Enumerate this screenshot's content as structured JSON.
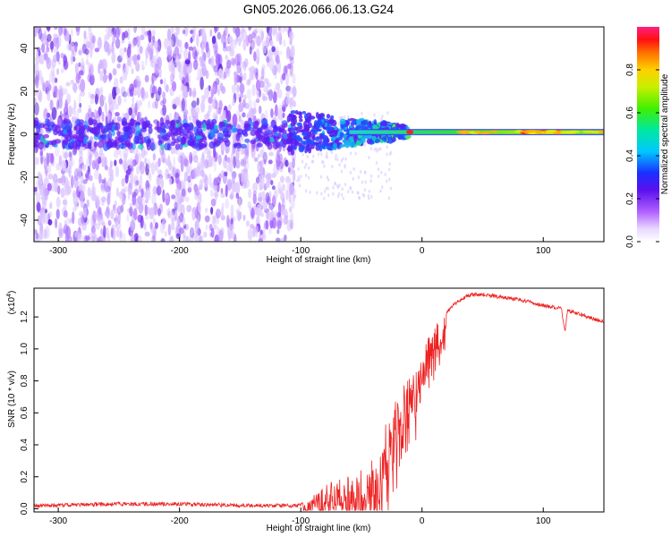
{
  "title": "GN05.2026.066.06.13.G24",
  "colors": {
    "snr_line": "#ee2222",
    "axis": "#000000",
    "spectrum_violet": "#7a35ee",
    "spectrum_band": "#22cc66"
  },
  "chart_data": [
    {
      "type": "heatmap",
      "name": "spectrogram",
      "xlabel": "Height of straight line (km)",
      "ylabel": "Frequency (Hz)",
      "xlim": [
        -320,
        150
      ],
      "ylim": [
        -50,
        50
      ],
      "xticks": [
        -300,
        -200,
        -100,
        0,
        100
      ],
      "yticks": [
        -40,
        -20,
        0,
        20,
        40
      ],
      "colorbar": {
        "label": "Normalized spectral amplitude",
        "range": [
          0,
          1
        ],
        "ticks": [
          0.0,
          0.2,
          0.4,
          0.6,
          0.8
        ],
        "colormap": "rainbow"
      },
      "features": {
        "noise_region_x": [
          -320,
          -105
        ],
        "noise_frequency_range": [
          -50,
          50
        ],
        "signal_center_frequency": 1,
        "signal_start_x": -110,
        "strong_signal_x": [
          -10,
          150
        ]
      }
    },
    {
      "type": "line",
      "name": "snr",
      "xlabel": "Height of straight line (km)",
      "ylabel": "SNR (10 * v/v)",
      "y_multiplier": "(x10",
      "y_multiplier_exponent": "4",
      "xlim": [
        -320,
        150
      ],
      "ylim": [
        -0.02,
        1.38
      ],
      "xticks": [
        -300,
        -200,
        -100,
        0,
        100
      ],
      "yticks": [
        0.0,
        0.2,
        0.4,
        0.6,
        0.8,
        1.0,
        1.2
      ],
      "series": [
        {
          "x": [
            -320,
            -250,
            -200,
            -150,
            -120,
            -100,
            -95,
            -90,
            -80,
            -70,
            -60,
            -50,
            -45,
            -40,
            -35,
            -30,
            -25,
            -20,
            -15,
            -10,
            -5,
            0,
            5,
            10,
            15,
            20,
            25,
            30,
            35,
            40,
            50,
            60,
            70,
            80,
            90,
            100,
            110,
            115,
            118,
            120,
            130,
            140,
            150
          ],
          "values": [
            0.02,
            0.03,
            0.03,
            0.02,
            0.02,
            0.02,
            0.05,
            0.1,
            0.14,
            0.16,
            0.18,
            0.24,
            0.3,
            0.33,
            0.4,
            0.5,
            0.55,
            0.7,
            0.75,
            0.8,
            0.85,
            0.95,
            1.05,
            1.12,
            1.17,
            1.22,
            1.27,
            1.3,
            1.32,
            1.34,
            1.34,
            1.33,
            1.32,
            1.31,
            1.29,
            1.27,
            1.26,
            1.25,
            1.1,
            1.24,
            1.22,
            1.19,
            1.17
          ]
        }
      ]
    }
  ]
}
